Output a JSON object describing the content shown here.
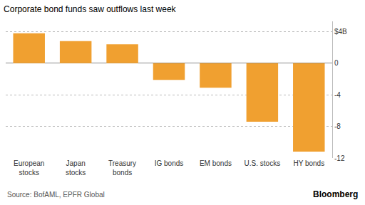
{
  "chart_data": {
    "type": "bar",
    "title": "Corporate bond funds saw outflows last week",
    "categories": [
      "European stocks",
      "Japan stocks",
      "Treasury bonds",
      "IG bonds",
      "EM bonds",
      "U.S. stocks",
      "HY bonds"
    ],
    "values": [
      3.8,
      2.8,
      2.4,
      -2.1,
      -3.1,
      -7.4,
      -11.2
    ],
    "color": "#f0a030",
    "ylim": [
      -12,
      5.3
    ],
    "yticks": [
      {
        "value": 4,
        "label": "$4B"
      },
      0,
      -4,
      -8,
      -12
    ],
    "grid": true,
    "source": "Source: BofAML, EPFR Global",
    "credit": "Bloomberg"
  }
}
